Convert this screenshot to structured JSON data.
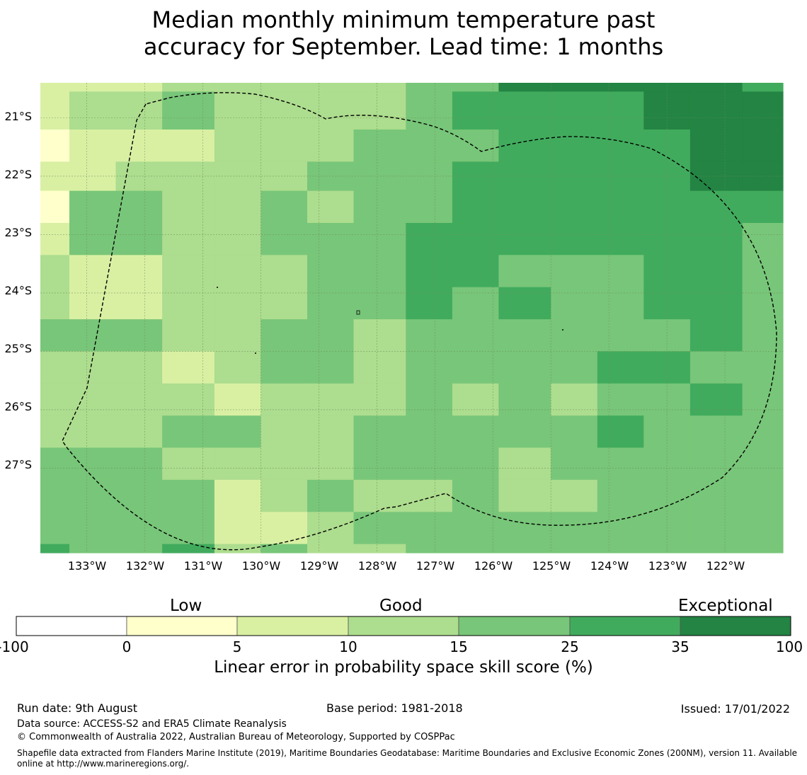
{
  "title": {
    "line1": "Median monthly minimum temperature past",
    "line2": "accuracy for September. Lead time: 1 months"
  },
  "map": {
    "lat_labels": [
      "21°S",
      "22°S",
      "23°S",
      "24°S",
      "25°S",
      "26°S",
      "27°S"
    ],
    "lon_labels": [
      "133°W",
      "132°W",
      "131°W",
      "130°W",
      "129°W",
      "128°W",
      "127°W",
      "126°W",
      "125°W",
      "124°W",
      "123°W",
      "122°W"
    ],
    "colors": {
      "c0": "#ffffcc",
      "c1": "#d9f0a3",
      "c2": "#addd8e",
      "c3": "#78c679",
      "c4": "#41ab5d",
      "c5": "#238443"
    },
    "grid_columns_deg": [
      -133.8,
      -133.3,
      -132.5,
      -131.7,
      -130.8,
      -130.0,
      -129.2,
      -128.4,
      -127.5,
      -126.7,
      -125.9,
      -125.0,
      -124.2,
      -123.4,
      -122.6,
      -121.7,
      -121.0
    ],
    "grid_rows_deg": [
      -20.4,
      -20.55,
      -21.2,
      -21.75,
      -22.25,
      -22.8,
      -23.35,
      -23.9,
      -24.45,
      -25.0,
      -25.55,
      -26.1,
      -26.65,
      -27.2,
      -27.75,
      -28.3,
      -28.45
    ],
    "grid_classes": [
      "1112222233555554",
      "1223222234444555",
      "0111222333444455",
      "1122223334444455",
      "0332232334444444",
      "1332233344444443",
      "2112223344333443",
      "2112223343433443",
      "3332233233333343",
      "2221233233334433",
      "2222122232323343",
      "2223322333334333",
      "3332222333233333",
      "3333123223223333",
      "3333112333333333",
      "4334232233333333"
    ]
  },
  "colorbar": {
    "categories": [
      "Low",
      "Good",
      "Exceptional"
    ],
    "ticks": [
      "-100",
      "0",
      "5",
      "10",
      "15",
      "25",
      "35",
      "100"
    ],
    "colors": [
      "#ffffff",
      "#ffffcc",
      "#d9f0a3",
      "#addd8e",
      "#78c679",
      "#41ab5d",
      "#238443"
    ],
    "label": "Linear error in probability space skill score (%)"
  },
  "footer": {
    "run_date": "Run date: 9th August",
    "base_period": "Base period: 1981-2018",
    "issued": "Issued: 17/01/2022",
    "data_source": "Data source: ACCESS-S2 and ERA5 Climate Reanalysis",
    "copyright": "© Commonwealth of Australia 2022, Australian Bureau of Meteorology, Supported by COSPPac",
    "shapefile_line1": "Shapefile data extracted from Flanders Marine Institute (2019), Maritime Boundaries Geodatabase: Maritime Boundaries and Exclusive Economic Zones (200NM), version 11. Available",
    "shapefile_line2": "online at http://www.marineregions.org/."
  }
}
